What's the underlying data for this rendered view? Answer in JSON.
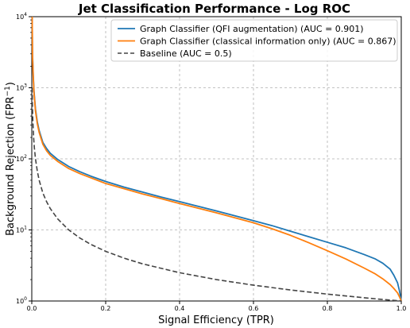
{
  "chart_data": {
    "type": "line",
    "title": "Jet Classification Performance - Log ROC",
    "xlabel": "Signal Efficiency (TPR)",
    "ylabel": "Background Rejection (FPR",
    "ylabel_sup": "−1",
    "ylabel_close": ")",
    "xlim": [
      0,
      1
    ],
    "ylim": [
      1,
      10000
    ],
    "yscale": "log",
    "grid": true,
    "legend_position": "top-right",
    "x_ticks": [
      "0.0",
      "0.2",
      "0.4",
      "0.6",
      "0.8",
      "1.0"
    ],
    "x_tick_values": [
      0,
      0.2,
      0.4,
      0.6,
      0.8,
      1.0
    ],
    "y_tick_values": [
      1,
      10,
      100,
      1000,
      10000
    ],
    "y_tick_base": "10",
    "y_tick_exponents": [
      "0",
      "1",
      "2",
      "3",
      "4"
    ],
    "series": [
      {
        "name": "Graph Classifier (QFI augmentation) (AUC = 0.901)",
        "color": "#1f77b4",
        "style": "solid",
        "x": [
          0.001,
          0.002,
          0.004,
          0.006,
          0.01,
          0.015,
          0.02,
          0.03,
          0.04,
          0.05,
          0.07,
          0.1,
          0.13,
          0.16,
          0.2,
          0.25,
          0.3,
          0.35,
          0.4,
          0.45,
          0.5,
          0.55,
          0.6,
          0.65,
          0.7,
          0.75,
          0.8,
          0.85,
          0.9,
          0.93,
          0.95,
          0.97,
          0.98,
          0.99,
          0.995,
          1.0
        ],
        "y": [
          10000,
          3000,
          1500,
          900,
          500,
          330,
          250,
          170,
          140,
          120,
          98,
          78,
          66,
          57,
          48,
          40,
          34,
          29,
          25,
          21.5,
          18.5,
          15.8,
          13.5,
          11.5,
          9.6,
          8.0,
          6.7,
          5.6,
          4.5,
          3.9,
          3.4,
          2.8,
          2.3,
          1.8,
          1.4,
          1.0
        ]
      },
      {
        "name": "Graph Classifier (classical information only) (AUC = 0.867)",
        "color": "#ff7f0e",
        "style": "solid",
        "x": [
          0.001,
          0.002,
          0.004,
          0.006,
          0.01,
          0.015,
          0.02,
          0.03,
          0.04,
          0.05,
          0.07,
          0.1,
          0.13,
          0.16,
          0.2,
          0.25,
          0.3,
          0.35,
          0.4,
          0.45,
          0.5,
          0.55,
          0.6,
          0.65,
          0.7,
          0.75,
          0.8,
          0.85,
          0.9,
          0.93,
          0.95,
          0.97,
          0.98,
          0.99,
          0.995,
          1.0
        ],
        "y": [
          10000,
          2800,
          1400,
          850,
          470,
          310,
          235,
          160,
          130,
          112,
          92,
          73,
          62,
          54,
          45,
          38,
          32,
          27.5,
          23.5,
          20.2,
          17.4,
          14.8,
          12.6,
          10.4,
          8.4,
          6.6,
          5.1,
          3.9,
          2.9,
          2.4,
          2.05,
          1.7,
          1.5,
          1.3,
          1.15,
          1.0
        ]
      },
      {
        "name": "Baseline (AUC = 0.5)",
        "color": "#444444",
        "style": "dashed",
        "x": [
          0.001,
          0.002,
          0.003,
          0.005,
          0.007,
          0.01,
          0.015,
          0.02,
          0.03,
          0.04,
          0.05,
          0.07,
          0.1,
          0.13,
          0.16,
          0.2,
          0.25,
          0.3,
          0.4,
          0.5,
          0.6,
          0.7,
          0.8,
          0.9,
          0.95,
          1.0
        ],
        "y": [
          1000,
          500,
          333,
          200,
          143,
          100,
          67,
          50,
          33,
          25,
          20,
          14.3,
          10,
          7.7,
          6.25,
          5,
          4,
          3.33,
          2.5,
          2,
          1.67,
          1.43,
          1.25,
          1.11,
          1.05,
          1.0
        ]
      }
    ]
  }
}
